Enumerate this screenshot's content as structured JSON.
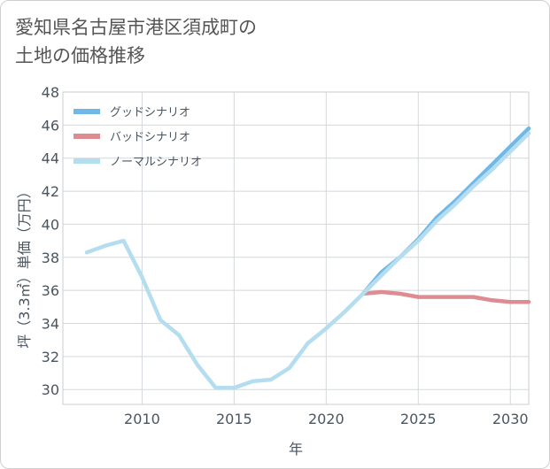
{
  "title_line1": "愛知県名古屋市港区須成町の",
  "title_line2": "土地の価格推移",
  "chart_data": {
    "type": "line",
    "title": "愛知県名古屋市港区須成町の土地の価格推移",
    "xlabel": "年",
    "ylabel": "坪（3.3㎡）単価（万円）",
    "xlim": [
      2005.7,
      2031
    ],
    "ylim": [
      29.1,
      48
    ],
    "xticks": [
      2010,
      2015,
      2020,
      2025,
      2030
    ],
    "yticks": [
      30,
      32,
      34,
      36,
      38,
      40,
      42,
      44,
      46,
      48
    ],
    "legend_position": "top-left",
    "series": [
      {
        "name": "グッドシナリオ",
        "color": "#70b8e8",
        "x": [
          2022,
          2023,
          2024,
          2025,
          2026,
          2027,
          2028,
          2029,
          2030,
          2031
        ],
        "y": [
          35.8,
          37.1,
          38.0,
          39.1,
          40.4,
          41.4,
          42.5,
          43.6,
          44.7,
          45.8
        ]
      },
      {
        "name": "バッドシナリオ",
        "color": "#de8c92",
        "x": [
          2022,
          2023,
          2024,
          2025,
          2026,
          2027,
          2028,
          2029,
          2030,
          2031
        ],
        "y": [
          35.8,
          35.9,
          35.8,
          35.6,
          35.6,
          35.6,
          35.6,
          35.4,
          35.3,
          35.3
        ]
      },
      {
        "name": "ノーマルシナリオ",
        "color": "#b5ddf0",
        "x": [
          2007,
          2008,
          2009,
          2010,
          2011,
          2012,
          2013,
          2014,
          2015,
          2016,
          2017,
          2018,
          2019,
          2020,
          2021,
          2022,
          2023,
          2024,
          2025,
          2026,
          2027,
          2028,
          2029,
          2030,
          2031
        ],
        "y": [
          38.3,
          38.7,
          39.0,
          36.8,
          34.2,
          33.3,
          31.5,
          30.1,
          30.1,
          30.5,
          30.6,
          31.3,
          32.8,
          33.7,
          34.7,
          35.8,
          36.9,
          38.0,
          39.0,
          40.2,
          41.2,
          42.3,
          43.3,
          44.4,
          45.5
        ]
      }
    ]
  }
}
